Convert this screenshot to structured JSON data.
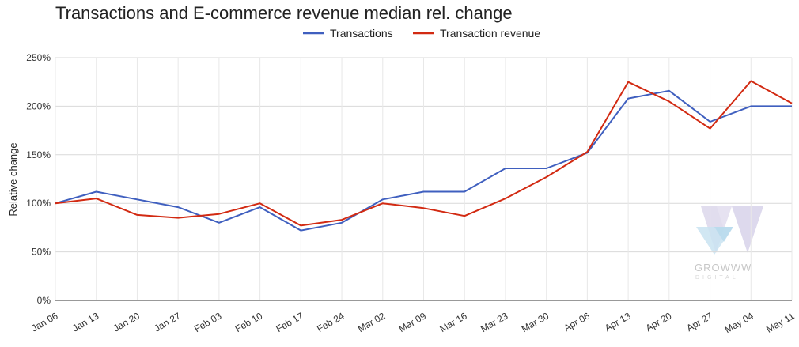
{
  "chart_data": {
    "type": "line",
    "title": "Transactions and E-commerce revenue median rel. change",
    "xlabel": "",
    "ylabel": "Relative change",
    "ylim": [
      0,
      250
    ],
    "yticks": [
      0,
      50,
      100,
      150,
      200,
      250
    ],
    "ytick_labels": [
      "0%",
      "50%",
      "100%",
      "150%",
      "200%",
      "250%"
    ],
    "legend_position": "top-center",
    "grid": true,
    "categories": [
      "Jan 06",
      "Jan 13",
      "Jan 20",
      "Jan 27",
      "Feb 03",
      "Feb 10",
      "Feb 17",
      "Feb 24",
      "Mar 02",
      "Mar 09",
      "Mar 16",
      "Mar 23",
      "Mar 30",
      "Apr 06",
      "Apr 13",
      "Apr 20",
      "Apr 27",
      "May 04",
      "May 11"
    ],
    "series": [
      {
        "name": "Transactions",
        "color": "#3f5fbf",
        "values": [
          100,
          112,
          104,
          96,
          80,
          96,
          72,
          80,
          104,
          112,
          112,
          136,
          136,
          152,
          208,
          216,
          184,
          200,
          200
        ]
      },
      {
        "name": "Transaction revenue",
        "color": "#d22a12",
        "values": [
          100,
          105,
          88,
          85,
          89,
          100,
          77,
          83,
          100,
          95,
          87,
          105,
          127,
          153,
          225,
          205,
          177,
          226,
          203
        ]
      }
    ]
  },
  "watermark": {
    "brand": "GROWWW",
    "sub": "DIGITAL"
  }
}
